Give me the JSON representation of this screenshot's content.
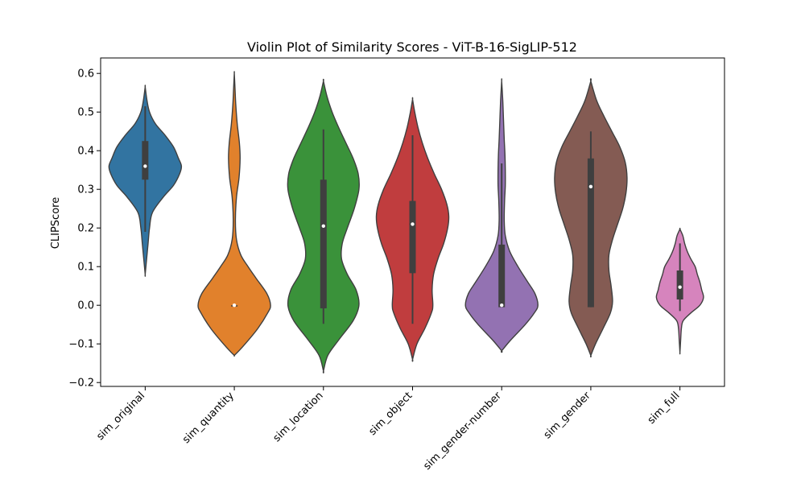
{
  "chart_data": {
    "type": "violin",
    "title": "Violin Plot of Similarity Scores - ViT-B-16-SigLIP-512",
    "xlabel": "",
    "ylabel": "CLIPScore",
    "ylim": [
      -0.21,
      0.64
    ],
    "yticks": [
      -0.2,
      -0.1,
      0.0,
      0.1,
      0.2,
      0.3,
      0.4,
      0.5,
      0.6
    ],
    "ytick_labels": [
      "−0.2",
      "−0.1",
      "0.0",
      "0.1",
      "0.2",
      "0.3",
      "0.4",
      "0.5",
      "0.6"
    ],
    "grid": false,
    "legend": "none",
    "categories": [
      "sim_original",
      "sim_quantity",
      "sim_location",
      "sim_object",
      "sim_gender-number",
      "sim_gender",
      "sim_full"
    ],
    "series": [
      {
        "category": "sim_original",
        "color": "#3274a1",
        "min": 0.08,
        "max": 0.565,
        "q1": 0.325,
        "median": 0.36,
        "q3": 0.425,
        "whisker_low": 0.19,
        "whisker_high": 0.515,
        "profile": [
          [
            0.08,
            0.0
          ],
          [
            0.12,
            0.04
          ],
          [
            0.16,
            0.08
          ],
          [
            0.2,
            0.12
          ],
          [
            0.24,
            0.2
          ],
          [
            0.28,
            0.5
          ],
          [
            0.31,
            0.78
          ],
          [
            0.34,
            0.95
          ],
          [
            0.36,
            1.0
          ],
          [
            0.38,
            0.92
          ],
          [
            0.41,
            0.78
          ],
          [
            0.44,
            0.55
          ],
          [
            0.47,
            0.28
          ],
          [
            0.5,
            0.12
          ],
          [
            0.53,
            0.05
          ],
          [
            0.565,
            0.0
          ]
        ]
      },
      {
        "category": "sim_quantity",
        "color": "#e1812c",
        "min": -0.128,
        "max": 0.6,
        "q1": 0.0,
        "median": 0.0,
        "q3": 0.0,
        "whisker_low": 0.0,
        "whisker_high": 0.0,
        "profile": [
          [
            -0.128,
            0.02
          ],
          [
            -0.1,
            0.3
          ],
          [
            -0.06,
            0.65
          ],
          [
            -0.02,
            0.92
          ],
          [
            0.0,
            1.0
          ],
          [
            0.03,
            0.9
          ],
          [
            0.07,
            0.6
          ],
          [
            0.1,
            0.38
          ],
          [
            0.13,
            0.18
          ],
          [
            0.17,
            0.06
          ],
          [
            0.22,
            0.03
          ],
          [
            0.28,
            0.06
          ],
          [
            0.33,
            0.13
          ],
          [
            0.38,
            0.16
          ],
          [
            0.42,
            0.14
          ],
          [
            0.47,
            0.08
          ],
          [
            0.52,
            0.04
          ],
          [
            0.56,
            0.02
          ],
          [
            0.6,
            0.0
          ]
        ]
      },
      {
        "category": "sim_location",
        "color": "#3a923a",
        "min": -0.17,
        "max": 0.58,
        "q1": -0.008,
        "median": 0.205,
        "q3": 0.325,
        "whisker_low": -0.048,
        "whisker_high": 0.455,
        "profile": [
          [
            -0.17,
            0.0
          ],
          [
            -0.13,
            0.12
          ],
          [
            -0.09,
            0.42
          ],
          [
            -0.04,
            0.82
          ],
          [
            0.0,
            0.98
          ],
          [
            0.04,
            0.9
          ],
          [
            0.08,
            0.66
          ],
          [
            0.12,
            0.5
          ],
          [
            0.16,
            0.52
          ],
          [
            0.2,
            0.66
          ],
          [
            0.25,
            0.85
          ],
          [
            0.3,
            0.98
          ],
          [
            0.34,
            0.96
          ],
          [
            0.38,
            0.82
          ],
          [
            0.42,
            0.62
          ],
          [
            0.46,
            0.42
          ],
          [
            0.5,
            0.24
          ],
          [
            0.54,
            0.1
          ],
          [
            0.58,
            0.0
          ]
        ]
      },
      {
        "category": "sim_object",
        "color": "#c03d3e",
        "min": -0.14,
        "max": 0.533,
        "q1": 0.083,
        "median": 0.21,
        "q3": 0.27,
        "whisker_low": -0.048,
        "whisker_high": 0.44,
        "profile": [
          [
            -0.14,
            0.0
          ],
          [
            -0.1,
            0.12
          ],
          [
            -0.06,
            0.34
          ],
          [
            -0.02,
            0.52
          ],
          [
            0.0,
            0.56
          ],
          [
            0.04,
            0.54
          ],
          [
            0.08,
            0.58
          ],
          [
            0.12,
            0.7
          ],
          [
            0.16,
            0.86
          ],
          [
            0.2,
            0.97
          ],
          [
            0.23,
            1.0
          ],
          [
            0.26,
            0.95
          ],
          [
            0.3,
            0.8
          ],
          [
            0.34,
            0.6
          ],
          [
            0.38,
            0.42
          ],
          [
            0.42,
            0.27
          ],
          [
            0.46,
            0.15
          ],
          [
            0.5,
            0.06
          ],
          [
            0.533,
            0.0
          ]
        ]
      },
      {
        "category": "sim_gender-number",
        "color": "#9372b2",
        "min": -0.118,
        "max": 0.58,
        "q1": -0.005,
        "median": 0.0,
        "q3": 0.157,
        "whisker_low": -0.005,
        "whisker_high": 0.367,
        "profile": [
          [
            -0.118,
            0.0
          ],
          [
            -0.09,
            0.25
          ],
          [
            -0.05,
            0.65
          ],
          [
            -0.02,
            0.9
          ],
          [
            0.0,
            1.0
          ],
          [
            0.03,
            0.92
          ],
          [
            0.06,
            0.72
          ],
          [
            0.1,
            0.45
          ],
          [
            0.14,
            0.22
          ],
          [
            0.18,
            0.1
          ],
          [
            0.22,
            0.07
          ],
          [
            0.27,
            0.08
          ],
          [
            0.31,
            0.1
          ],
          [
            0.35,
            0.1
          ],
          [
            0.39,
            0.09
          ],
          [
            0.43,
            0.07
          ],
          [
            0.48,
            0.05
          ],
          [
            0.53,
            0.03
          ],
          [
            0.58,
            0.0
          ]
        ]
      },
      {
        "category": "sim_gender",
        "color": "#845b53",
        "min": -0.13,
        "max": 0.58,
        "q1": -0.005,
        "median": 0.307,
        "q3": 0.38,
        "whisker_low": -0.005,
        "whisker_high": 0.45,
        "profile": [
          [
            -0.13,
            0.0
          ],
          [
            -0.1,
            0.13
          ],
          [
            -0.06,
            0.34
          ],
          [
            -0.02,
            0.54
          ],
          [
            0.01,
            0.6
          ],
          [
            0.05,
            0.56
          ],
          [
            0.09,
            0.5
          ],
          [
            0.13,
            0.5
          ],
          [
            0.17,
            0.6
          ],
          [
            0.21,
            0.74
          ],
          [
            0.25,
            0.88
          ],
          [
            0.29,
            0.97
          ],
          [
            0.33,
            1.0
          ],
          [
            0.37,
            0.95
          ],
          [
            0.41,
            0.8
          ],
          [
            0.45,
            0.58
          ],
          [
            0.49,
            0.36
          ],
          [
            0.53,
            0.16
          ],
          [
            0.58,
            0.0
          ]
        ]
      },
      {
        "category": "sim_full",
        "color": "#d684bd",
        "min": -0.122,
        "max": 0.197,
        "q1": 0.015,
        "median": 0.047,
        "q3": 0.09,
        "whisker_low": -0.015,
        "whisker_high": 0.16,
        "profile": [
          [
            -0.122,
            0.0
          ],
          [
            -0.09,
            0.02
          ],
          [
            -0.06,
            0.04
          ],
          [
            -0.04,
            0.09
          ],
          [
            -0.02,
            0.3
          ],
          [
            0.0,
            0.55
          ],
          [
            0.02,
            0.65
          ],
          [
            0.04,
            0.6
          ],
          [
            0.06,
            0.55
          ],
          [
            0.08,
            0.48
          ],
          [
            0.1,
            0.42
          ],
          [
            0.12,
            0.3
          ],
          [
            0.14,
            0.2
          ],
          [
            0.16,
            0.13
          ],
          [
            0.18,
            0.08
          ],
          [
            0.197,
            0.0
          ]
        ]
      }
    ]
  }
}
